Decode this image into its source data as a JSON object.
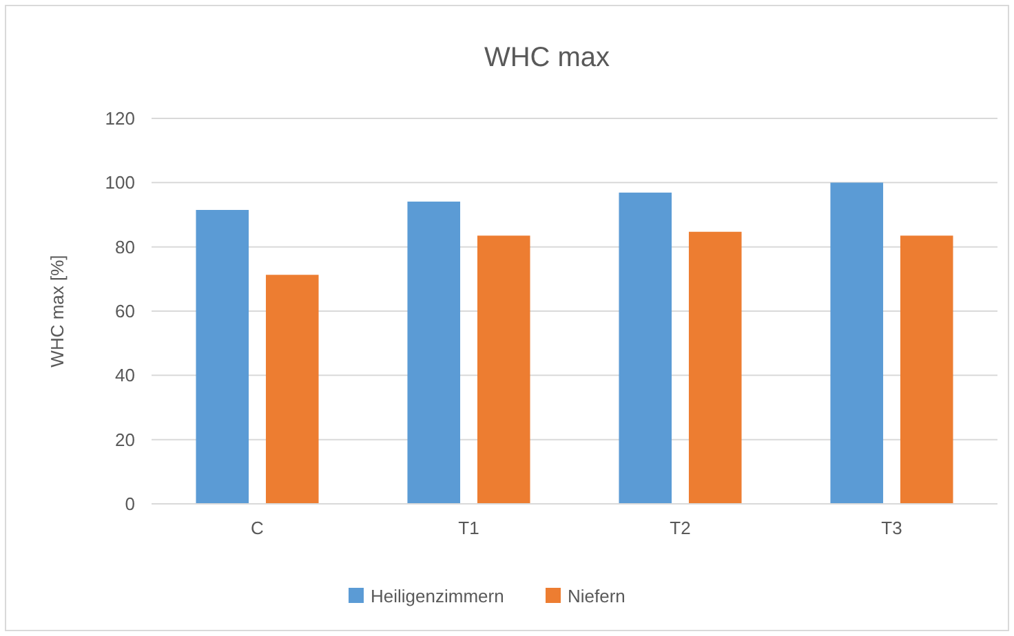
{
  "chart_data": {
    "type": "bar",
    "title": "WHC max",
    "ylabel": "WHC max [%]",
    "categories": [
      "C",
      "T1",
      "T2",
      "T3"
    ],
    "series": [
      {
        "name": "Heiligenzimmern",
        "color": "#5b9bd5",
        "values": [
          91.5,
          94.1,
          96.9,
          100
        ]
      },
      {
        "name": "Niefern",
        "color": "#ed7d31",
        "values": [
          71.3,
          83.5,
          84.7,
          83.5
        ]
      }
    ],
    "ylim": [
      0,
      120
    ],
    "yticks": [
      0,
      20,
      40,
      60,
      80,
      100,
      120
    ],
    "grid": "y",
    "legend": "bottom"
  }
}
